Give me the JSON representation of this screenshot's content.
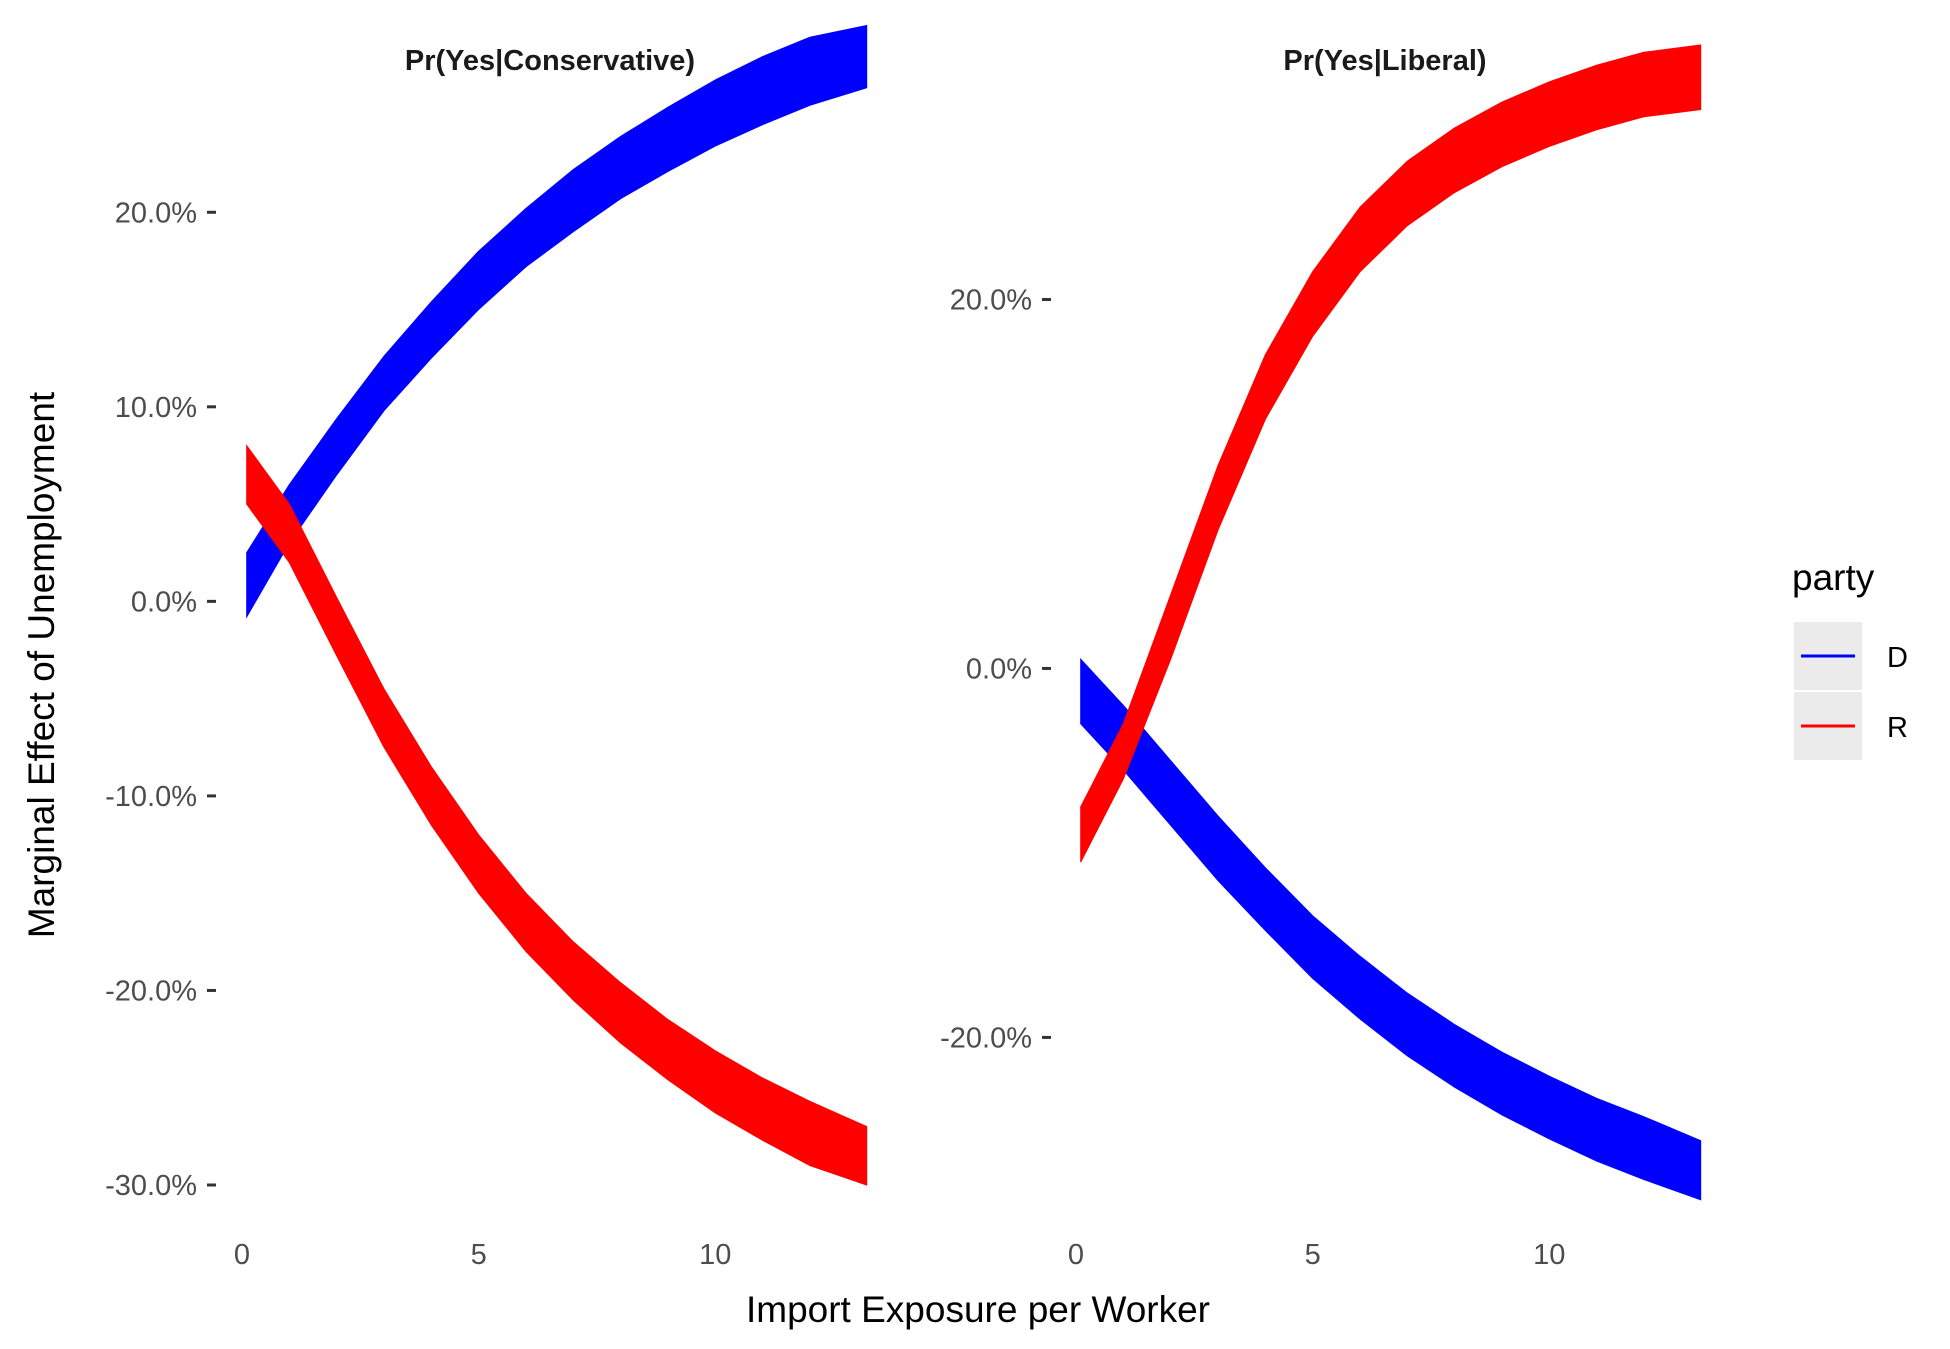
{
  "chart_data": {
    "type": "area",
    "xlabel": "Import Exposure per Worker",
    "ylabel": "Marginal Effect of Unemployment",
    "legend": {
      "title": "party",
      "position": "right",
      "entries": [
        {
          "key": "D",
          "label": "D",
          "color": "#0000ff"
        },
        {
          "key": "R",
          "label": "R",
          "color": "#ff0000"
        }
      ]
    },
    "grid": false,
    "panels": [
      {
        "title": "Pr(Yes|Conservative)",
        "xlim": [
          0,
          13.1
        ],
        "ylim": [
          -30.0,
          25.0
        ],
        "x_ticks": [
          0,
          5,
          10
        ],
        "x_tick_labels": [
          "0",
          "5",
          "10"
        ],
        "y_ticks": [
          20,
          10,
          0,
          -10,
          -20,
          -30
        ],
        "y_tick_labels": [
          "20.0%",
          "10.0%",
          "0.0%",
          "-10.0%",
          "-20.0%",
          "-30.0%"
        ],
        "series": [
          {
            "name": "D",
            "color": "#0000ff",
            "x": [
              0.1,
              1,
              2,
              3,
              4,
              5,
              6,
              7,
              8,
              9,
              10,
              11,
              12,
              13.2
            ],
            "lower": [
              -0.8,
              3.0,
              6.5,
              9.8,
              12.5,
              15.0,
              17.2,
              19.0,
              20.7,
              22.1,
              23.4,
              24.5,
              25.5,
              26.4
            ],
            "upper": [
              2.5,
              6.0,
              9.4,
              12.6,
              15.4,
              18.0,
              20.2,
              22.2,
              23.9,
              25.4,
              26.8,
              28.0,
              29.0,
              29.6
            ]
          },
          {
            "name": "R",
            "color": "#ff0000",
            "x": [
              0.1,
              1,
              2,
              3,
              4,
              5,
              6,
              7,
              8,
              9,
              10,
              11,
              12,
              13.2
            ],
            "lower": [
              5.0,
              2.0,
              -2.8,
              -7.5,
              -11.5,
              -15.0,
              -18.0,
              -20.5,
              -22.7,
              -24.6,
              -26.3,
              -27.7,
              -29.0,
              -30.0
            ],
            "upper": [
              8.0,
              5.0,
              0.2,
              -4.5,
              -8.5,
              -12.0,
              -15.0,
              -17.5,
              -19.6,
              -21.5,
              -23.1,
              -24.5,
              -25.7,
              -27.0
            ]
          }
        ]
      },
      {
        "title": "Pr(Yes|Liberal)",
        "xlim": [
          0,
          13.1
        ],
        "ylim": [
          -28.0,
          30.0
        ],
        "x_ticks": [
          0,
          5,
          10
        ],
        "x_tick_labels": [
          "0",
          "5",
          "10"
        ],
        "y_ticks": [
          20,
          0,
          -20
        ],
        "y_tick_labels": [
          "20.0%",
          "0.0%",
          "-20.0%"
        ],
        "series": [
          {
            "name": "D",
            "color": "#0000ff",
            "x": [
              0.1,
              1,
              2,
              3,
              4,
              5,
              6,
              7,
              8,
              9,
              10,
              11,
              12,
              13.2
            ],
            "lower": [
              -3.0,
              -5.5,
              -8.5,
              -11.5,
              -14.2,
              -16.8,
              -19.0,
              -21.0,
              -22.7,
              -24.2,
              -25.5,
              -26.7,
              -27.7,
              -28.8
            ],
            "upper": [
              0.5,
              -2.0,
              -5.0,
              -8.0,
              -10.8,
              -13.4,
              -15.6,
              -17.6,
              -19.3,
              -20.8,
              -22.1,
              -23.3,
              -24.3,
              -25.6
            ]
          },
          {
            "name": "R",
            "color": "#ff0000",
            "x": [
              0.1,
              1,
              2,
              3,
              4,
              5,
              6,
              7,
              8,
              9,
              10,
              11,
              12,
              13.2
            ],
            "lower": [
              -10.5,
              -6.0,
              0.5,
              7.5,
              13.5,
              18.0,
              21.5,
              24.0,
              25.8,
              27.2,
              28.3,
              29.2,
              29.9,
              30.3
            ],
            "upper": [
              -7.5,
              -3.0,
              4.0,
              11.0,
              17.0,
              21.5,
              25.0,
              27.5,
              29.3,
              30.7,
              31.8,
              32.7,
              33.4,
              33.8
            ]
          }
        ]
      }
    ]
  }
}
